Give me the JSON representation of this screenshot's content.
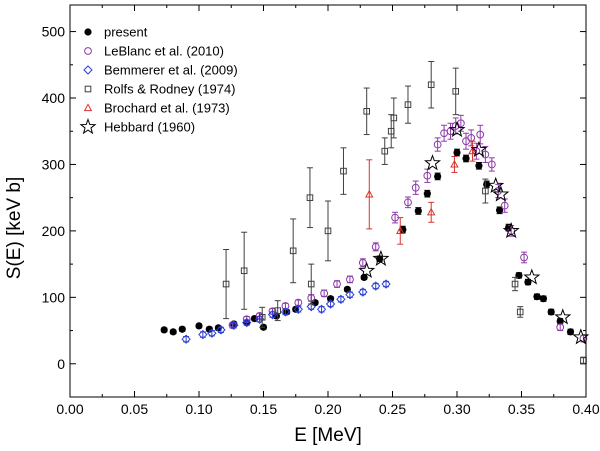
{
  "chart_data": {
    "type": "scatter",
    "xlabel": "E [MeV]",
    "ylabel": "S(E) [keV b]",
    "xlim": [
      0.0,
      0.4
    ],
    "ylim": [
      -50,
      540
    ],
    "xticks": [
      0.0,
      0.05,
      0.1,
      0.15,
      0.2,
      0.25,
      0.3,
      0.35,
      0.4
    ],
    "xtick_labels": [
      "0.00",
      "0.05",
      "0.10",
      "0.15",
      "0.20",
      "0.25",
      "0.30",
      "0.35",
      "0.40"
    ],
    "yticks": [
      0,
      100,
      200,
      300,
      400,
      500
    ],
    "ytick_labels": [
      "0",
      "100",
      "200",
      "300",
      "400",
      "500"
    ],
    "legend_position": "top-left",
    "series": [
      {
        "name": "present",
        "marker": "filled-circle",
        "color": "#000000",
        "points": [
          {
            "x": 0.073,
            "y": 51,
            "err": 3
          },
          {
            "x": 0.08,
            "y": 48,
            "err": 3
          },
          {
            "x": 0.087,
            "y": 52,
            "err": 3
          },
          {
            "x": 0.1,
            "y": 57,
            "err": 3
          },
          {
            "x": 0.108,
            "y": 52,
            "err": 3
          },
          {
            "x": 0.115,
            "y": 54,
            "err": 3
          },
          {
            "x": 0.127,
            "y": 60,
            "err": 3
          },
          {
            "x": 0.137,
            "y": 62,
            "err": 3
          },
          {
            "x": 0.143,
            "y": 68,
            "err": 3
          },
          {
            "x": 0.15,
            "y": 55,
            "err": 3
          },
          {
            "x": 0.16,
            "y": 72,
            "err": 3
          },
          {
            "x": 0.168,
            "y": 78,
            "err": 3
          },
          {
            "x": 0.175,
            "y": 82,
            "err": 3
          },
          {
            "x": 0.19,
            "y": 92,
            "err": 3
          },
          {
            "x": 0.202,
            "y": 98,
            "err": 3
          },
          {
            "x": 0.215,
            "y": 112,
            "err": 3
          },
          {
            "x": 0.228,
            "y": 130,
            "err": 3
          },
          {
            "x": 0.24,
            "y": 158,
            "err": 4
          },
          {
            "x": 0.258,
            "y": 202,
            "err": 5
          },
          {
            "x": 0.27,
            "y": 230,
            "err": 5
          },
          {
            "x": 0.277,
            "y": 256,
            "err": 5
          },
          {
            "x": 0.285,
            "y": 282,
            "err": 5
          },
          {
            "x": 0.3,
            "y": 318,
            "err": 5
          },
          {
            "x": 0.307,
            "y": 309,
            "err": 5
          },
          {
            "x": 0.317,
            "y": 298,
            "err": 5
          },
          {
            "x": 0.323,
            "y": 270,
            "err": 5
          },
          {
            "x": 0.333,
            "y": 231,
            "err": 5
          },
          {
            "x": 0.34,
            "y": 205,
            "err": 5
          },
          {
            "x": 0.348,
            "y": 133,
            "err": 4
          },
          {
            "x": 0.355,
            "y": 123,
            "err": 4
          },
          {
            "x": 0.362,
            "y": 101,
            "err": 4
          },
          {
            "x": 0.367,
            "y": 98,
            "err": 4
          },
          {
            "x": 0.373,
            "y": 78,
            "err": 4
          },
          {
            "x": 0.38,
            "y": 64,
            "err": 4
          },
          {
            "x": 0.388,
            "y": 48,
            "err": 4
          }
        ]
      },
      {
        "name": "LeBlanc et al. (2010)",
        "marker": "open-circle",
        "color": "#8e3aa8",
        "points": [
          {
            "x": 0.126,
            "y": 58,
            "err": 4
          },
          {
            "x": 0.137,
            "y": 67,
            "err": 4
          },
          {
            "x": 0.147,
            "y": 72,
            "err": 4
          },
          {
            "x": 0.157,
            "y": 79,
            "err": 4
          },
          {
            "x": 0.167,
            "y": 87,
            "err": 4
          },
          {
            "x": 0.177,
            "y": 92,
            "err": 4
          },
          {
            "x": 0.187,
            "y": 99,
            "err": 5
          },
          {
            "x": 0.197,
            "y": 106,
            "err": 5
          },
          {
            "x": 0.207,
            "y": 120,
            "err": 5
          },
          {
            "x": 0.217,
            "y": 127,
            "err": 5
          },
          {
            "x": 0.227,
            "y": 152,
            "err": 6
          },
          {
            "x": 0.237,
            "y": 176,
            "err": 6
          },
          {
            "x": 0.252,
            "y": 220,
            "err": 8
          },
          {
            "x": 0.262,
            "y": 243,
            "err": 8
          },
          {
            "x": 0.268,
            "y": 265,
            "err": 10
          },
          {
            "x": 0.277,
            "y": 283,
            "err": 10
          },
          {
            "x": 0.285,
            "y": 330,
            "err": 10
          },
          {
            "x": 0.29,
            "y": 347,
            "err": 12
          },
          {
            "x": 0.295,
            "y": 350,
            "err": 12
          },
          {
            "x": 0.299,
            "y": 358,
            "err": 12
          },
          {
            "x": 0.303,
            "y": 362,
            "err": 12
          },
          {
            "x": 0.307,
            "y": 335,
            "err": 12
          },
          {
            "x": 0.311,
            "y": 340,
            "err": 12
          },
          {
            "x": 0.315,
            "y": 320,
            "err": 12
          },
          {
            "x": 0.318,
            "y": 345,
            "err": 14
          },
          {
            "x": 0.322,
            "y": 315,
            "err": 12
          },
          {
            "x": 0.327,
            "y": 300,
            "err": 10
          },
          {
            "x": 0.332,
            "y": 260,
            "err": 10
          },
          {
            "x": 0.337,
            "y": 238,
            "err": 10
          },
          {
            "x": 0.342,
            "y": 200,
            "err": 8
          },
          {
            "x": 0.352,
            "y": 160,
            "err": 8
          },
          {
            "x": 0.38,
            "y": 55,
            "err": 5
          },
          {
            "x": 0.398,
            "y": 38,
            "err": 5
          }
        ]
      },
      {
        "name": "Bemmerer et al. (2009)",
        "marker": "open-diamond",
        "color": "#2d3fd6",
        "points": [
          {
            "x": 0.09,
            "y": 37,
            "err": 4
          },
          {
            "x": 0.103,
            "y": 44,
            "err": 4
          },
          {
            "x": 0.11,
            "y": 46,
            "err": 4
          },
          {
            "x": 0.117,
            "y": 51,
            "err": 4
          },
          {
            "x": 0.127,
            "y": 58,
            "err": 4
          },
          {
            "x": 0.137,
            "y": 62,
            "err": 4
          },
          {
            "x": 0.147,
            "y": 67,
            "err": 4
          },
          {
            "x": 0.157,
            "y": 74,
            "err": 4
          },
          {
            "x": 0.167,
            "y": 78,
            "err": 4
          },
          {
            "x": 0.177,
            "y": 82,
            "err": 4
          },
          {
            "x": 0.187,
            "y": 86,
            "err": 4
          },
          {
            "x": 0.195,
            "y": 82,
            "err": 4
          },
          {
            "x": 0.202,
            "y": 90,
            "err": 4
          },
          {
            "x": 0.21,
            "y": 97,
            "err": 4
          },
          {
            "x": 0.217,
            "y": 104,
            "err": 4
          },
          {
            "x": 0.227,
            "y": 108,
            "err": 4
          },
          {
            "x": 0.237,
            "y": 117,
            "err": 4
          },
          {
            "x": 0.245,
            "y": 120,
            "err": 4
          }
        ]
      },
      {
        "name": "Rolfs & Rodney (1974)",
        "marker": "open-square",
        "color": "#404040",
        "points": [
          {
            "x": 0.121,
            "y": 120,
            "err": 52
          },
          {
            "x": 0.135,
            "y": 140,
            "err": 58
          },
          {
            "x": 0.149,
            "y": 70,
            "err": 15
          },
          {
            "x": 0.161,
            "y": 80,
            "err": 15
          },
          {
            "x": 0.173,
            "y": 170,
            "err": 48
          },
          {
            "x": 0.186,
            "y": 250,
            "err": 45
          },
          {
            "x": 0.187,
            "y": 120,
            "err": 30
          },
          {
            "x": 0.2,
            "y": 200,
            "err": 45
          },
          {
            "x": 0.212,
            "y": 290,
            "err": 35
          },
          {
            "x": 0.23,
            "y": 380,
            "err": 35
          },
          {
            "x": 0.244,
            "y": 320,
            "err": 20
          },
          {
            "x": 0.249,
            "y": 350,
            "err": 25
          },
          {
            "x": 0.251,
            "y": 370,
            "err": 30
          },
          {
            "x": 0.262,
            "y": 390,
            "err": 28
          },
          {
            "x": 0.28,
            "y": 420,
            "err": 35
          },
          {
            "x": 0.299,
            "y": 410,
            "err": 35
          },
          {
            "x": 0.322,
            "y": 260,
            "err": 18
          },
          {
            "x": 0.345,
            "y": 120,
            "err": 10
          },
          {
            "x": 0.349,
            "y": 78,
            "err": 8
          },
          {
            "x": 0.398,
            "y": 5,
            "err": 5
          }
        ]
      },
      {
        "name": "Brochard et al. (1973)",
        "marker": "open-triangle",
        "color": "#d9332a",
        "points": [
          {
            "x": 0.232,
            "y": 255,
            "err": 52
          },
          {
            "x": 0.256,
            "y": 200,
            "err": 20
          },
          {
            "x": 0.28,
            "y": 228,
            "err": 15
          },
          {
            "x": 0.298,
            "y": 300,
            "err": 12
          },
          {
            "x": 0.312,
            "y": 320,
            "err": 15
          }
        ]
      },
      {
        "name": "Hebbard (1960)",
        "marker": "open-star",
        "color": "#000000",
        "points": [
          {
            "x": 0.23,
            "y": 140
          },
          {
            "x": 0.241,
            "y": 158
          },
          {
            "x": 0.281,
            "y": 302
          },
          {
            "x": 0.3,
            "y": 352
          },
          {
            "x": 0.317,
            "y": 322
          },
          {
            "x": 0.33,
            "y": 268
          },
          {
            "x": 0.334,
            "y": 255
          },
          {
            "x": 0.342,
            "y": 200
          },
          {
            "x": 0.358,
            "y": 130
          },
          {
            "x": 0.382,
            "y": 70
          },
          {
            "x": 0.396,
            "y": 40
          }
        ]
      }
    ]
  }
}
